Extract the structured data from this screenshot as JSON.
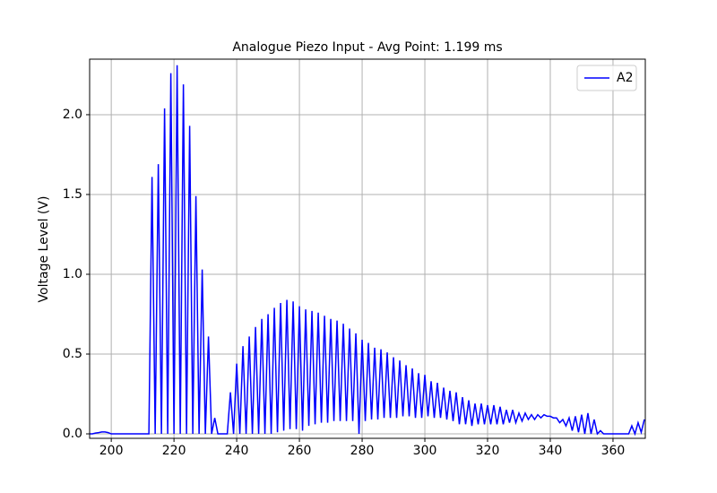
{
  "chart_data": {
    "type": "line",
    "title": "Analogue Piezo Input - Avg Point: 1.199 ms",
    "y_label": "Voltage Level (V)",
    "x": [
      193,
      194,
      195,
      196,
      197,
      198,
      199,
      200,
      201,
      202,
      203,
      204,
      205,
      206,
      207,
      208,
      209,
      210,
      211,
      212,
      213,
      214,
      215,
      216,
      217,
      218,
      219,
      220,
      221,
      222,
      223,
      224,
      225,
      226,
      227,
      228,
      229,
      230,
      231,
      232,
      233,
      234,
      235,
      236,
      237,
      238,
      239,
      240,
      241,
      242,
      243,
      244,
      245,
      246,
      247,
      248,
      249,
      250,
      251,
      252,
      253,
      254,
      255,
      256,
      257,
      258,
      259,
      260,
      261,
      262,
      263,
      264,
      265,
      266,
      267,
      268,
      269,
      270,
      271,
      272,
      273,
      274,
      275,
      276,
      277,
      278,
      279,
      280,
      281,
      282,
      283,
      284,
      285,
      286,
      287,
      288,
      289,
      290,
      291,
      292,
      293,
      294,
      295,
      296,
      297,
      298,
      299,
      300,
      301,
      302,
      303,
      304,
      305,
      306,
      307,
      308,
      309,
      310,
      311,
      312,
      313,
      314,
      315,
      316,
      317,
      318,
      319,
      320,
      321,
      322,
      323,
      324,
      325,
      326,
      327,
      328,
      329,
      330,
      331,
      332,
      333,
      334,
      335,
      336,
      337,
      338,
      339,
      340,
      341,
      342,
      343,
      344,
      345,
      346,
      347,
      348,
      349,
      350,
      351,
      352,
      353,
      354,
      355,
      356,
      357,
      358,
      359,
      360,
      361,
      362,
      363,
      364,
      365,
      366,
      367,
      368,
      369,
      370
    ],
    "series": [
      {
        "name": "A2",
        "color": "#0000ff",
        "values": [
          0,
          0,
          0.005,
          0.008,
          0.012,
          0.012,
          0.008,
          0,
          0,
          0,
          0,
          0,
          0,
          0,
          0,
          0,
          0,
          0,
          0,
          0,
          1.61,
          0,
          1.69,
          0,
          2.04,
          0,
          2.26,
          0,
          2.31,
          0,
          2.19,
          0,
          1.93,
          0,
          1.49,
          0,
          1.03,
          0,
          0.61,
          0,
          0.1,
          0,
          0,
          0,
          0,
          0.26,
          0,
          0.44,
          0,
          0.55,
          0,
          0.61,
          0,
          0.67,
          0,
          0.72,
          0,
          0.75,
          0,
          0.79,
          0.01,
          0.82,
          0.02,
          0.84,
          0.03,
          0.83,
          0.03,
          0.8,
          0.02,
          0.78,
          0.05,
          0.77,
          0.06,
          0.76,
          0.07,
          0.74,
          0.07,
          0.72,
          0.08,
          0.71,
          0.08,
          0.69,
          0.08,
          0.66,
          0.08,
          0.63,
          0,
          0.59,
          0.08,
          0.57,
          0.09,
          0.54,
          0.09,
          0.53,
          0.1,
          0.51,
          0.1,
          0.48,
          0.1,
          0.46,
          0.11,
          0.43,
          0.11,
          0.41,
          0.1,
          0.38,
          0.1,
          0.37,
          0.11,
          0.33,
          0.1,
          0.32,
          0.1,
          0.29,
          0.09,
          0.27,
          0.08,
          0.26,
          0.06,
          0.23,
          0.06,
          0.21,
          0.05,
          0.19,
          0.06,
          0.19,
          0.06,
          0.18,
          0.06,
          0.18,
          0.06,
          0.17,
          0.06,
          0.15,
          0.07,
          0.15,
          0.07,
          0.13,
          0.08,
          0.13,
          0.09,
          0.12,
          0.09,
          0.12,
          0.1,
          0.12,
          0.11,
          0.11,
          0.1,
          0.1,
          0.07,
          0.09,
          0.05,
          0.1,
          0.02,
          0.11,
          0.01,
          0.12,
          0,
          0.13,
          0,
          0.09,
          0,
          0.02,
          0,
          0,
          0,
          0,
          0,
          0,
          0,
          0,
          0,
          0.05,
          0,
          0.07,
          0.01,
          0.09
        ]
      }
    ],
    "xlim": [
      193.1,
      370.3
    ],
    "ylim": [
      -0.028,
      2.348
    ],
    "xticks": [
      200,
      220,
      240,
      260,
      280,
      300,
      320,
      340,
      360
    ],
    "yticks": [
      {
        "value": 0,
        "label": "0.0"
      },
      {
        "value": 0.5,
        "label": "0.5"
      },
      {
        "value": 1,
        "label": "1.0"
      },
      {
        "value": 1.5,
        "label": "1.5"
      },
      {
        "value": 2,
        "label": "2.0"
      }
    ],
    "grid": true,
    "legend": "upper right"
  }
}
